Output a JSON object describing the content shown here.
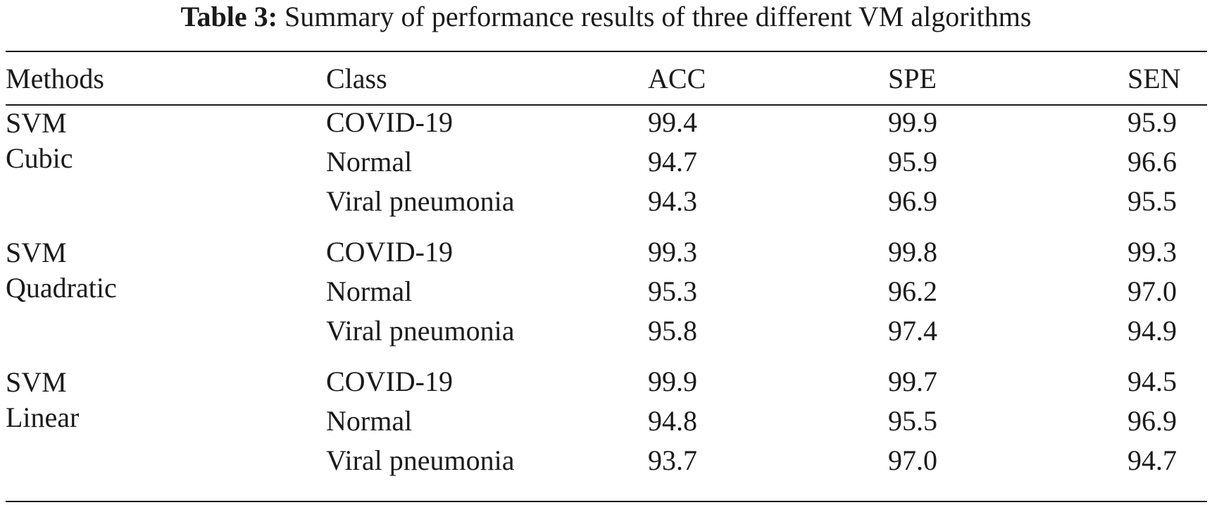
{
  "caption": {
    "label": "Table 3:",
    "text": "Summary of performance results of three different VM algorithms"
  },
  "table": {
    "headers": {
      "methods": "Methods",
      "class": "Class",
      "acc": "ACC",
      "spe": "SPE",
      "sen": "SEN"
    },
    "groups": [
      {
        "method_line1": "SVM",
        "method_line2": "Cubic",
        "rows": [
          {
            "class": "COVID-19",
            "acc": "99.4",
            "spe": "99.9",
            "sen": "95.9"
          },
          {
            "class": "Normal",
            "acc": "94.7",
            "spe": "95.9",
            "sen": "96.6"
          },
          {
            "class": "Viral pneumonia",
            "acc": "94.3",
            "spe": "96.9",
            "sen": "95.5"
          }
        ]
      },
      {
        "method_line1": "SVM",
        "method_line2": "Quadratic",
        "rows": [
          {
            "class": "COVID-19",
            "acc": "99.3",
            "spe": "99.8",
            "sen": "99.3"
          },
          {
            "class": "Normal",
            "acc": "95.3",
            "spe": "96.2",
            "sen": "97.0"
          },
          {
            "class": "Viral pneumonia",
            "acc": "95.8",
            "spe": "97.4",
            "sen": "94.9"
          }
        ]
      },
      {
        "method_line1": "SVM",
        "method_line2": "Linear",
        "rows": [
          {
            "class": "COVID-19",
            "acc": "99.9",
            "spe": "99.7",
            "sen": "94.5"
          },
          {
            "class": "Normal",
            "acc": "94.8",
            "spe": "95.5",
            "sen": "96.9"
          },
          {
            "class": "Viral pneumonia",
            "acc": "93.7",
            "spe": "97.0",
            "sen": "94.7"
          }
        ]
      }
    ]
  }
}
